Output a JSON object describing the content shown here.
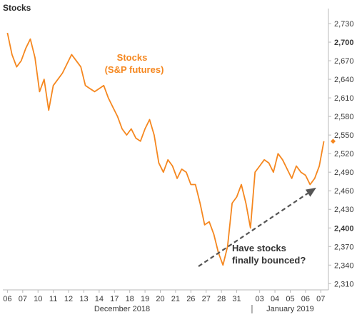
{
  "panel_title": "Stocks",
  "colors": {
    "series": "#f5871f",
    "axis": "#b8b8b8",
    "tick_text": "#3a3a3a",
    "arrow": "#555555",
    "background": "#ffffff"
  },
  "annotations": {
    "series_label_line1": "Stocks",
    "series_label_line2": "(S&P futures)",
    "question_line1": "Have stocks",
    "question_line2": "finally bounced?"
  },
  "chart_data": {
    "type": "line",
    "title": "Stocks",
    "series": [
      {
        "name": "Stocks (S&P futures)",
        "x": [
          0,
          0.3,
          0.6,
          0.9,
          1.2,
          1.5,
          1.8,
          2.1,
          2.4,
          2.7,
          3.0,
          3.3,
          3.6,
          3.9,
          4.2,
          4.5,
          4.8,
          5.1,
          5.4,
          5.7,
          6.0,
          6.3,
          6.6,
          6.9,
          7.2,
          7.5,
          7.8,
          8.1,
          8.4,
          8.7,
          9.0,
          9.3,
          9.6,
          9.9,
          10.2,
          10.5,
          10.8,
          11.1,
          11.4,
          11.7,
          12.0,
          12.3,
          12.6,
          12.9,
          13.2,
          13.5,
          13.8,
          14.1,
          14.4,
          14.7,
          15.0,
          15.3,
          15.6,
          15.9,
          16.2,
          16.5,
          16.8,
          17.1,
          17.4,
          17.7,
          18.0,
          18.3,
          18.6,
          18.9,
          19.2,
          19.5,
          19.8,
          20.1,
          20.4,
          20.7
        ],
        "values": [
          2715,
          2680,
          2660,
          2670,
          2690,
          2705,
          2675,
          2620,
          2640,
          2590,
          2630,
          2640,
          2650,
          2665,
          2680,
          2670,
          2660,
          2630,
          2625,
          2620,
          2625,
          2630,
          2610,
          2595,
          2580,
          2560,
          2550,
          2560,
          2545,
          2540,
          2560,
          2575,
          2550,
          2505,
          2490,
          2510,
          2500,
          2480,
          2495,
          2490,
          2470,
          2470,
          2440,
          2405,
          2410,
          2390,
          2360,
          2340,
          2370,
          2440,
          2450,
          2470,
          2440,
          2400,
          2490,
          2500,
          2510,
          2505,
          2490,
          2520,
          2510,
          2495,
          2480,
          2500,
          2490,
          2485,
          2470,
          2480,
          2500,
          2540
        ]
      }
    ],
    "y_ticks": [
      2310,
      2340,
      2370,
      2400,
      2430,
      2460,
      2490,
      2520,
      2550,
      2580,
      2610,
      2640,
      2670,
      2700,
      2730
    ],
    "y_tick_labels": [
      "2,310",
      "2,340",
      "2,370",
      "2,400",
      "2,430",
      "2,460",
      "2,490",
      "2,520",
      "2,550",
      "2,580",
      "2,610",
      "2,640",
      "2,670",
      "2,700",
      "2,730"
    ],
    "bold_y_ticks": [
      2400,
      2700
    ],
    "ylim": [
      2300,
      2745
    ],
    "x_tick_labels": [
      "06",
      "07",
      "10",
      "11",
      "12",
      "13",
      "14",
      "17",
      "18",
      "19",
      "20",
      "21",
      "26",
      "27",
      "28",
      "31",
      "03",
      "04",
      "05",
      "06",
      "07"
    ],
    "x_tick_positions": [
      0,
      1,
      2,
      3,
      4,
      5,
      6,
      7,
      8,
      9,
      10,
      11,
      12,
      13,
      14,
      15,
      16.5,
      17.5,
      18.5,
      19.5,
      20.5
    ],
    "xlim": [
      -0.3,
      21
    ],
    "month_labels": [
      {
        "label": "December 2018",
        "position": 7.5
      },
      {
        "label": "January 2019",
        "position": 18.5
      }
    ],
    "month_divider_position": 16,
    "trend_arrow": {
      "from": [
        12.5,
        2338
      ],
      "to": [
        20.2,
        2465
      ]
    },
    "xlabel": "",
    "ylabel": "",
    "grid": false,
    "legend": "none"
  }
}
